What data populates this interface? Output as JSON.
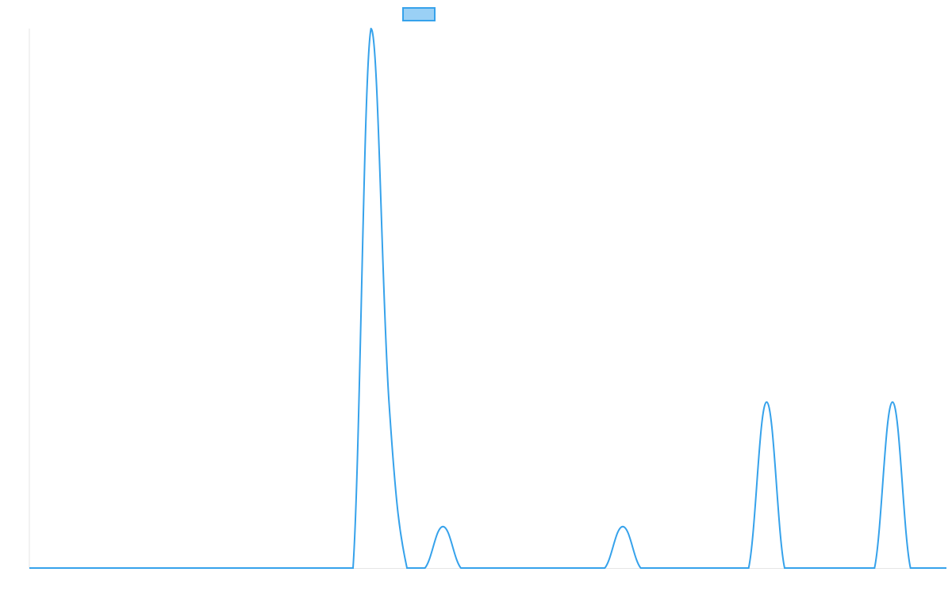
{
  "chart_data": {
    "type": "line",
    "categories": [
      null,
      null,
      null,
      null,
      null,
      null,
      null,
      null,
      null,
      null,
      null,
      null,
      null,
      null,
      null,
      null,
      null,
      null,
      null,
      null,
      null,
      null,
      null,
      null,
      null,
      null,
      null,
      null,
      null,
      null,
      null,
      null,
      null,
      null,
      null,
      null,
      null,
      null,
      null,
      null,
      null,
      null,
      null,
      null,
      null,
      null,
      null,
      null,
      null,
      null,
      null,
      null
    ],
    "series": [
      {
        "color": "#36a2eb",
        "values": [
          0,
          0,
          0,
          0,
          0,
          0,
          0,
          0,
          0,
          0,
          0,
          0,
          0,
          0,
          0,
          0,
          0,
          0,
          0,
          13,
          4,
          0,
          0,
          1,
          0,
          0,
          0,
          0,
          0,
          0,
          0,
          0,
          0,
          1,
          0,
          0,
          0,
          0,
          0,
          0,
          0,
          4,
          0,
          0,
          0,
          0,
          0,
          0,
          4,
          0,
          0,
          0
        ]
      }
    ],
    "ylim": [
      0,
      13
    ],
    "grid": false
  }
}
